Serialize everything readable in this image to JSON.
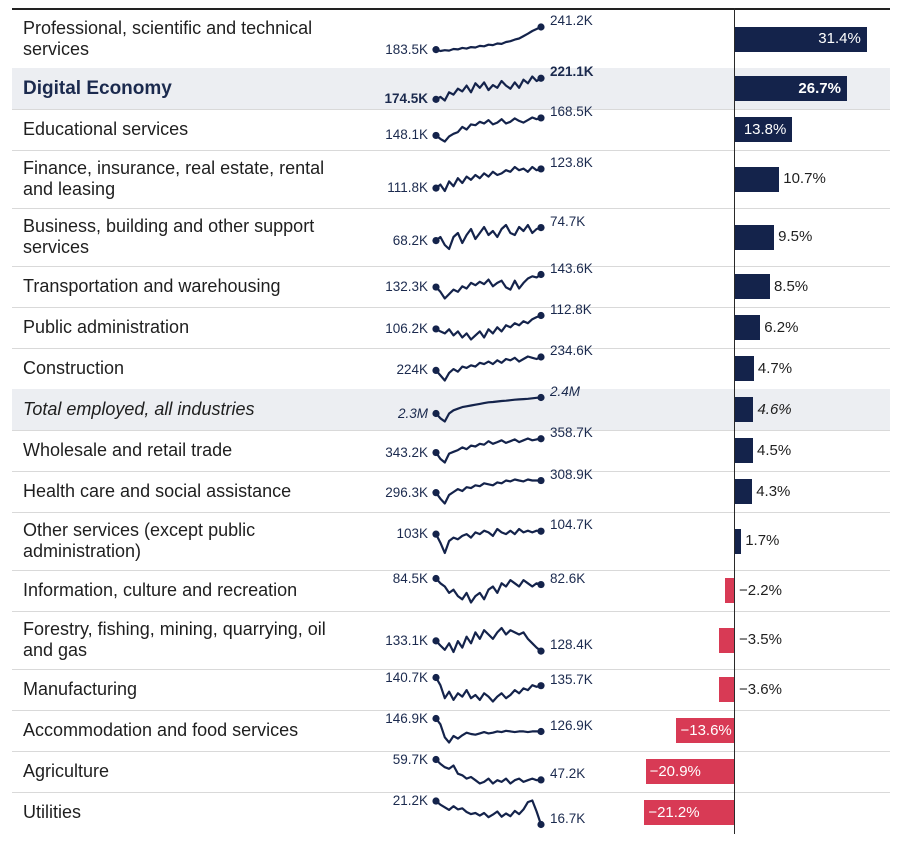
{
  "colors": {
    "positive": "#14234b",
    "negative": "#d83a55",
    "text": "#1f1f1f",
    "spark": "#14234b",
    "highlight": "#eceef2"
  },
  "chart_data": {
    "type": "bar",
    "title": "",
    "xlabel": "",
    "ylabel": "",
    "unit": "%",
    "rows": [
      {
        "label": "Professional, scientific and technical services",
        "start_label": "183.5K",
        "end_label": "241.2K",
        "value": 31.4,
        "value_label": "31.4%",
        "style": "normal",
        "spark": [
          183.5,
          180,
          182,
          181,
          185,
          184,
          188,
          186,
          190,
          189,
          193,
          192,
          196,
          195,
          199,
          198,
          203,
          205,
          209,
          212,
          218,
          224,
          231,
          236,
          241.2
        ]
      },
      {
        "label": "Digital Economy",
        "start_label": "174.5K",
        "end_label": "221.1K",
        "value": 26.7,
        "value_label": "26.7%",
        "style": "bold",
        "spark": [
          174.5,
          180,
          172,
          190,
          185,
          198,
          192,
          205,
          190,
          210,
          200,
          212,
          195,
          206,
          200,
          215,
          205,
          198,
          212,
          200,
          218,
          210,
          225,
          215,
          221.1
        ]
      },
      {
        "label": "Educational services",
        "start_label": "148.1K",
        "end_label": "168.5K",
        "value": 13.8,
        "value_label": "13.8%",
        "style": "normal",
        "spark": [
          148.1,
          144,
          141,
          147,
          150,
          152,
          158,
          155,
          161,
          160,
          164,
          162,
          166,
          161,
          163,
          167,
          162,
          164,
          168,
          165,
          163,
          166,
          169,
          167,
          168.5
        ]
      },
      {
        "label": "Finance, insurance, real estate, rental and leasing",
        "start_label": "111.8K",
        "end_label": "123.8K",
        "value": 10.7,
        "value_label": "10.7%",
        "style": "normal",
        "spark": [
          111.8,
          114,
          110,
          116,
          113,
          118,
          115,
          119,
          117,
          120,
          118,
          121,
          119,
          122,
          120,
          121,
          123,
          122,
          125,
          123,
          124,
          122,
          125,
          123,
          123.8
        ]
      },
      {
        "label": "Business, building and other support services",
        "start_label": "68.2K",
        "end_label": "74.7K",
        "value": 9.5,
        "value_label": "9.5%",
        "style": "normal",
        "spark": [
          68.2,
          70,
          66,
          64,
          70,
          72,
          67,
          71,
          74,
          69,
          72,
          75,
          71,
          73,
          70,
          74,
          76,
          72,
          71,
          75,
          73,
          76,
          72,
          74,
          74.7
        ]
      },
      {
        "label": "Transportation and warehousing",
        "start_label": "132.3K",
        "end_label": "143.6K",
        "value": 8.5,
        "value_label": "8.5%",
        "style": "normal",
        "spark": [
          132.3,
          128,
          122,
          126,
          130,
          128,
          133,
          131,
          136,
          134,
          137,
          135,
          139,
          133,
          136,
          138,
          132,
          130,
          138,
          131,
          136,
          140,
          142,
          141,
          143.6
        ]
      },
      {
        "label": "Public administration",
        "start_label": "106.2K",
        "end_label": "112.8K",
        "value": 6.2,
        "value_label": "6.2%",
        "style": "normal",
        "spark": [
          106.2,
          105,
          104,
          106,
          103,
          105,
          102,
          104,
          101,
          103,
          105,
          102,
          106,
          104,
          107,
          105,
          108,
          107,
          109,
          108,
          110,
          109,
          111,
          112,
          112.8
        ]
      },
      {
        "label": "Construction",
        "start_label": "224K",
        "end_label": "234.6K",
        "value": 4.7,
        "value_label": "4.7%",
        "style": "normal",
        "spark": [
          224,
          220,
          216,
          222,
          225,
          223,
          227,
          226,
          228,
          227,
          230,
          229,
          231,
          229,
          232,
          230,
          233,
          232,
          234,
          231,
          233,
          235,
          234,
          233,
          234.6
        ]
      },
      {
        "label": "Total employed, all industries",
        "start_label": "2.3M",
        "end_label": "2.4M",
        "value": 4.6,
        "value_label": "4.6%",
        "style": "italic",
        "spark": [
          2.3,
          2.27,
          2.25,
          2.3,
          2.32,
          2.33,
          2.34,
          2.345,
          2.35,
          2.355,
          2.36,
          2.365,
          2.37,
          2.372,
          2.375,
          2.378,
          2.38,
          2.383,
          2.386,
          2.388,
          2.39,
          2.392,
          2.395,
          2.398,
          2.4
        ]
      },
      {
        "label": "Wholesale and retail trade",
        "start_label": "343.2K",
        "end_label": "358.7K",
        "value": 4.5,
        "value_label": "4.5%",
        "style": "normal",
        "spark": [
          343.2,
          336,
          332,
          342,
          344,
          346,
          349,
          347,
          351,
          350,
          353,
          352,
          356,
          353,
          355,
          357,
          354,
          356,
          358,
          355,
          357,
          359,
          357,
          358,
          358.7
        ]
      },
      {
        "label": "Health care and social assistance",
        "start_label": "296.3K",
        "end_label": "308.9K",
        "value": 4.3,
        "value_label": "4.3%",
        "style": "normal",
        "spark": [
          296.3,
          290,
          285,
          294,
          297,
          300,
          298,
          302,
          301,
          304,
          303,
          306,
          305,
          304,
          307,
          306,
          309,
          308,
          310,
          309,
          308,
          310,
          309,
          309,
          308.9
        ]
      },
      {
        "label": "Other services (except public administration)",
        "start_label": "103K",
        "end_label": "104.7K",
        "value": 1.7,
        "value_label": "1.7%",
        "style": "normal",
        "spark": [
          103,
          98,
          92,
          99,
          101,
          100,
          102,
          103,
          101,
          104,
          103,
          105,
          104,
          102,
          106,
          104,
          103,
          105,
          103,
          106,
          104,
          105,
          104,
          105,
          104.7
        ]
      },
      {
        "label": "Information, culture and recreation",
        "start_label": "84.5K",
        "end_label": "82.6K",
        "value": -2.2,
        "value_label": "−2.2%",
        "style": "normal",
        "spark": [
          84.5,
          83,
          82,
          80,
          81,
          79,
          78,
          80,
          77,
          79,
          80,
          78,
          81,
          82,
          80,
          83,
          82,
          84,
          83,
          82,
          84,
          83,
          82,
          83,
          82.6
        ]
      },
      {
        "label": "Forestry, fishing, mining, quarrying, oil and gas",
        "start_label": "133.1K",
        "end_label": "128.4K",
        "value": -3.5,
        "value_label": "−3.5%",
        "style": "normal",
        "spark": [
          133.1,
          131,
          129,
          132,
          128,
          133,
          130,
          135,
          132,
          137,
          134,
          138,
          136,
          134,
          137,
          139,
          136,
          138,
          137,
          136,
          137,
          134,
          132,
          130,
          128.4
        ]
      },
      {
        "label": "Manufacturing",
        "start_label": "140.7K",
        "end_label": "135.7K",
        "value": -3.6,
        "value_label": "−3.6%",
        "style": "normal",
        "spark": [
          140.7,
          136,
          128,
          132,
          127,
          131,
          129,
          133,
          128,
          130,
          127,
          131,
          129,
          126,
          129,
          131,
          128,
          130,
          133,
          131,
          134,
          133,
          136,
          135,
          135.7
        ]
      },
      {
        "label": "Accommodation and food services",
        "start_label": "146.9K",
        "end_label": "126.9K",
        "value": -13.6,
        "value_label": "−13.6%",
        "style": "normal",
        "spark": [
          146.9,
          138,
          118,
          110,
          120,
          116,
          121,
          125,
          123,
          122,
          124,
          126,
          124,
          125,
          127,
          126,
          128,
          127,
          126,
          127,
          127,
          126,
          127,
          127,
          126.9
        ]
      },
      {
        "label": "Agriculture",
        "start_label": "59.7K",
        "end_label": "47.2K",
        "value": -20.9,
        "value_label": "−20.9%",
        "style": "normal",
        "spark": [
          59.7,
          57,
          55,
          54,
          56,
          51,
          50,
          48,
          49,
          47,
          45,
          46,
          48,
          45,
          47,
          46,
          48,
          45,
          47,
          48,
          46,
          47,
          48,
          47,
          47.2
        ]
      },
      {
        "label": "Utilities",
        "start_label": "21.2K",
        "end_label": "16.7K",
        "value": -21.2,
        "value_label": "−21.2%",
        "style": "normal",
        "spark": [
          21.2,
          20.5,
          20,
          19.5,
          20.2,
          19.6,
          19.8,
          19.1,
          18.7,
          18.9,
          18.4,
          18.9,
          18.1,
          18.6,
          19.2,
          18.2,
          18.8,
          18.3,
          19.3,
          18.7,
          19.6,
          21,
          21.3,
          19.2,
          16.7
        ]
      }
    ]
  }
}
